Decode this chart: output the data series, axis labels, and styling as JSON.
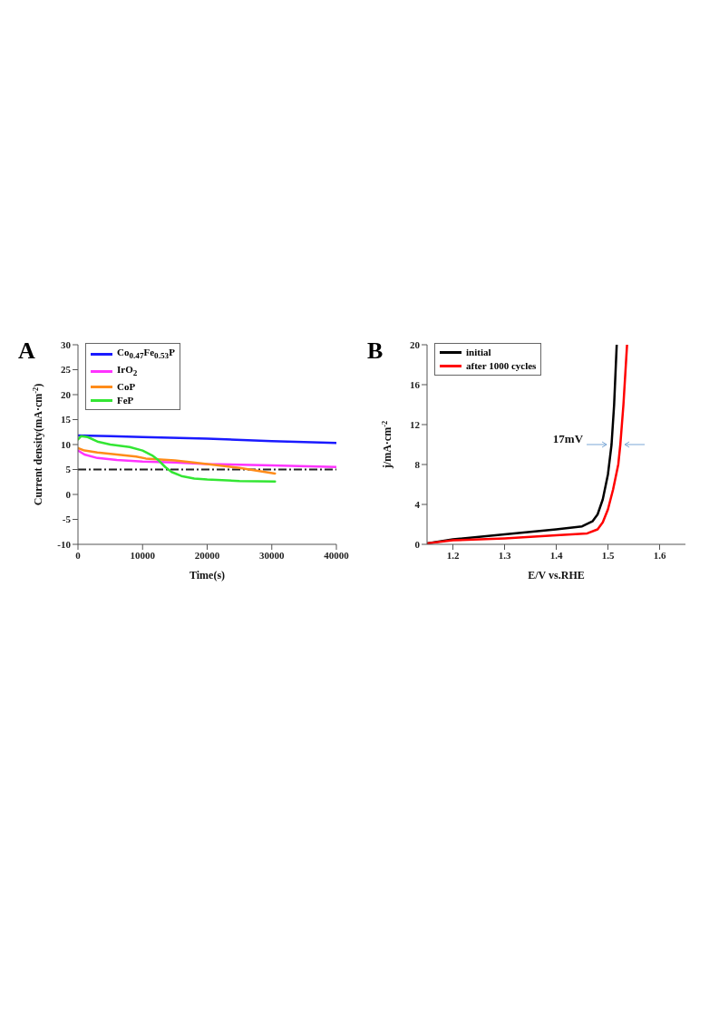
{
  "chart_data": [
    {
      "type": "line",
      "annotations": [
        "A"
      ],
      "xlabel": "Time(s)",
      "ylabel": "Current density(mA·cm$^{-2}$)",
      "xlim": [
        0,
        40000
      ],
      "xticks": [
        0,
        10000,
        20000,
        30000,
        40000
      ],
      "ylim": [
        -10,
        30
      ],
      "yticks": [
        -10,
        -5,
        0,
        5,
        10,
        15,
        20,
        25,
        30
      ],
      "legend": "top left",
      "marker": "none",
      "line_style": "solid",
      "ref_lines": [
        {
          "axis": "y",
          "value": 5,
          "color": "#222222",
          "line_style": "dashed"
        }
      ],
      "series": [
        {
          "name": "Co$_{0.47}$Fe$_{0.53}$P",
          "color": "#1a1aff",
          "x": [
            0,
            5000,
            10000,
            20000,
            30000,
            40000
          ],
          "values": [
            11.8,
            11.7,
            11.5,
            11.2,
            10.7,
            10.3
          ]
        },
        {
          "name": "IrO$_{2}$",
          "color": "#ff33ff",
          "x": [
            0,
            1000,
            3000,
            6000,
            10000,
            15000,
            20000,
            30000,
            40000
          ],
          "values": [
            8.8,
            8,
            7.3,
            6.9,
            6.6,
            6.4,
            6.1,
            5.8,
            5.5
          ]
        },
        {
          "name": "CoP",
          "color": "#ff8c1a",
          "x": [
            0,
            1000,
            3000,
            6000,
            9000,
            10500,
            15000,
            20000,
            25000,
            30500
          ],
          "values": [
            9.3,
            8.8,
            8.4,
            8,
            7.6,
            7.2,
            6.8,
            6.1,
            5.3,
            4.2
          ]
        },
        {
          "name": "FeP",
          "color": "#33e633",
          "x": [
            0,
            500,
            1500,
            3000,
            5000,
            8000,
            10000,
            11500,
            12500,
            13500,
            14500,
            16000,
            18000,
            20000,
            25000,
            30500
          ],
          "values": [
            11,
            11.7,
            11.5,
            10.6,
            10,
            9.5,
            8.8,
            7.8,
            6.8,
            5.5,
            4.5,
            3.7,
            3.2,
            3,
            2.7,
            2.6
          ]
        }
      ]
    },
    {
      "type": "line",
      "annotations": [
        "B",
        {
          "text": "17mV",
          "x": 1.515,
          "y": 10
        }
      ],
      "xlabel": "E/V vs.RHE",
      "ylabel": "j/mA·cm$^{-2}$",
      "xlim": [
        1.15,
        1.65
      ],
      "xticks": [
        1.2,
        1.3,
        1.4,
        1.5,
        1.6
      ],
      "ylim": [
        0,
        20
      ],
      "yticks": [
        0,
        4,
        8,
        12,
        16,
        20
      ],
      "legend": "top left",
      "marker": "none",
      "line_style": "solid",
      "series": [
        {
          "name": "initial",
          "color": "#000000",
          "x": [
            1.15,
            1.2,
            1.3,
            1.4,
            1.45,
            1.47,
            1.48,
            1.49,
            1.5,
            1.507,
            1.512,
            1.517
          ],
          "values": [
            0.1,
            0.5,
            1,
            1.5,
            1.8,
            2.3,
            3,
            4.5,
            7,
            10,
            14,
            20
          ]
        },
        {
          "name": "after 1000 cycles",
          "color": "#ff0000",
          "x": [
            1.15,
            1.2,
            1.3,
            1.4,
            1.46,
            1.48,
            1.49,
            1.5,
            1.51,
            1.52,
            1.524,
            1.53,
            1.537
          ],
          "values": [
            0.1,
            0.4,
            0.6,
            0.9,
            1.1,
            1.5,
            2.2,
            3.5,
            5.5,
            8,
            10,
            14,
            20
          ]
        }
      ]
    }
  ]
}
